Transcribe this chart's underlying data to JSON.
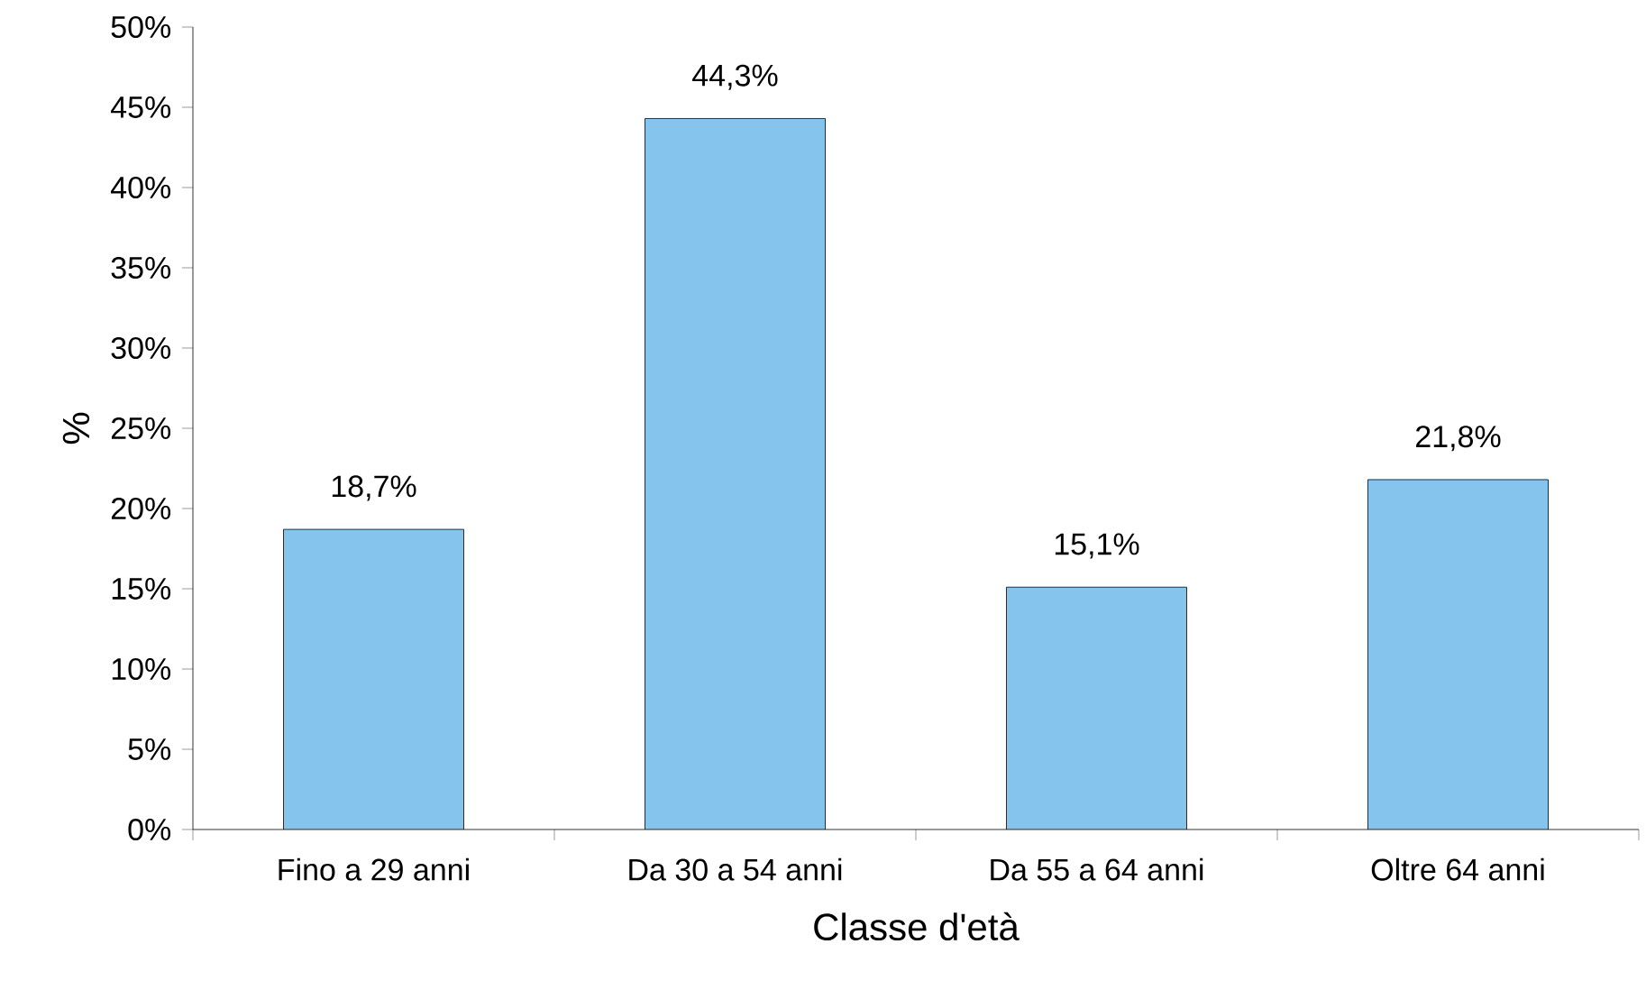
{
  "chart_data": {
    "type": "bar",
    "xlabel": "Classe d'età",
    "ylabel": "%",
    "categories": [
      "Fino a 29 anni",
      "Da 30 a 54 anni",
      "Da 55 a 64 anni",
      "Oltre 64 anni"
    ],
    "values": [
      18.7,
      44.3,
      15.1,
      21.8
    ],
    "value_labels": [
      "18,7%",
      "44,3%",
      "15,1%",
      "21,8%"
    ],
    "color": "#85c4ec",
    "ylim": [
      0,
      50
    ],
    "yticks": [
      {
        "value": 0,
        "label": "0%"
      },
      {
        "value": 5,
        "label": "5%"
      },
      {
        "value": 10,
        "label": "10%"
      },
      {
        "value": 15,
        "label": "15%"
      },
      {
        "value": 20,
        "label": "20%"
      },
      {
        "value": 25,
        "label": "25%"
      },
      {
        "value": 30,
        "label": "30%"
      },
      {
        "value": 35,
        "label": "35%"
      },
      {
        "value": 40,
        "label": "40%"
      },
      {
        "value": 45,
        "label": "45%"
      },
      {
        "value": 50,
        "label": "50%"
      }
    ],
    "grid": false
  }
}
